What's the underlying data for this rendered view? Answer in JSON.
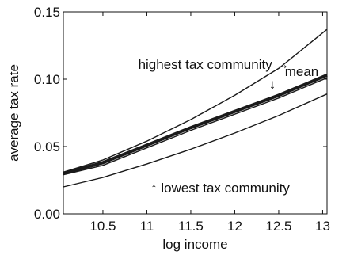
{
  "chart_data": {
    "type": "line",
    "title": "",
    "xlabel": "log income",
    "ylabel": "average tax rate",
    "xlim": [
      10.05,
      13.05
    ],
    "ylim": [
      0,
      0.15
    ],
    "xticks": [
      10.5,
      11,
      11.5,
      12,
      12.5,
      13
    ],
    "xtick_labels": [
      "10.5",
      "11",
      "11.5",
      "12",
      "12.5",
      "13"
    ],
    "yticks": [
      0,
      0.05,
      0.1,
      0.15
    ],
    "ytick_labels": [
      "0.00",
      "0.05",
      "0.10",
      "0.15"
    ],
    "grid": false,
    "series": [
      {
        "name": "highest tax community",
        "emphasis": "thin",
        "x": [
          10.05,
          10.5,
          11,
          11.5,
          12,
          12.5,
          13.05
        ],
        "y": [
          0.031,
          0.04,
          0.054,
          0.07,
          0.088,
          0.108,
          0.137
        ]
      },
      {
        "name": "mean",
        "emphasis": "thick",
        "x": [
          10.05,
          10.5,
          11,
          11.5,
          12,
          12.5,
          13.05
        ],
        "y": [
          0.03,
          0.038,
          0.051,
          0.064,
          0.076,
          0.088,
          0.103
        ]
      },
      {
        "name": "",
        "emphasis": "thin",
        "x": [
          10.05,
          10.5,
          11,
          11.5,
          12,
          12.5,
          13.05
        ],
        "y": [
          0.029,
          0.036,
          0.049,
          0.062,
          0.074,
          0.086,
          0.101
        ]
      },
      {
        "name": "lowest tax community",
        "emphasis": "thin",
        "x": [
          10.05,
          10.5,
          11,
          11.5,
          12,
          12.5,
          13.05
        ],
        "y": [
          0.02,
          0.027,
          0.037,
          0.048,
          0.06,
          0.073,
          0.089
        ]
      }
    ],
    "annotations": [
      {
        "text": "highest tax community →",
        "target": "highest tax community"
      },
      {
        "text": "mean",
        "target": "mean"
      },
      {
        "text": "↓",
        "target": "mean"
      },
      {
        "text": "↑ lowest tax community",
        "target": "lowest tax community"
      }
    ],
    "colors": {
      "line": "#1a1a1a",
      "axis": "#111111"
    }
  }
}
